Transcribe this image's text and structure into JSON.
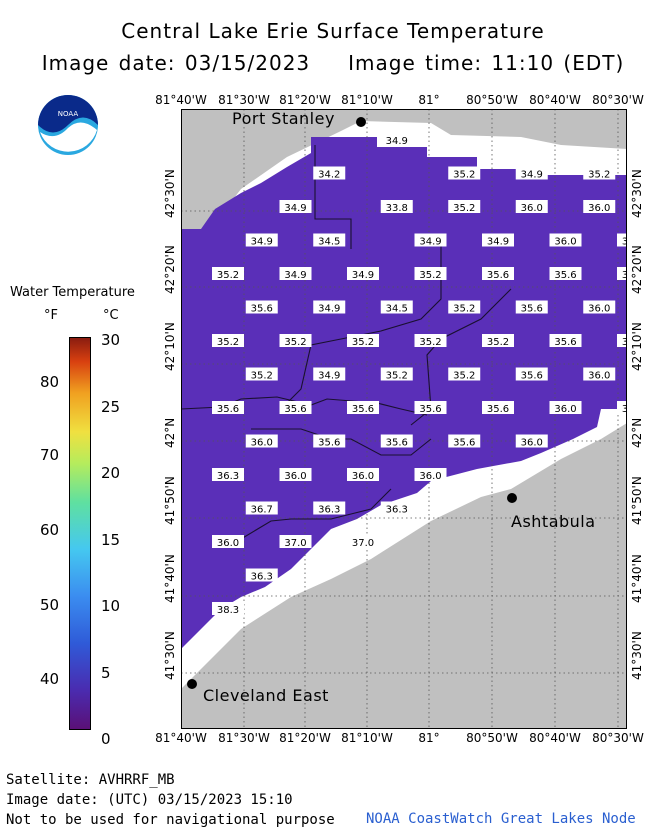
{
  "header": {
    "title": "Central Lake Erie Surface Temperature",
    "image_date": "Image date: 03/15/2023",
    "image_time": "Image time: 11:10 (EDT)"
  },
  "logo": {
    "text": "NOAA",
    "icon": "noaa-logo-icon"
  },
  "legend": {
    "title": "Water Temperature",
    "unit_f": "°F",
    "unit_c": "°C",
    "ticks_f": [
      "80",
      "70",
      "60",
      "50",
      "40"
    ],
    "ticks_c": [
      "30",
      "25",
      "20",
      "15",
      "10",
      "5",
      "0"
    ]
  },
  "longitude_labels": [
    "81°40'W",
    "81°30'W",
    "81°20'W",
    "81°10'W",
    "81°",
    "80°50'W",
    "80°40'W",
    "80°30'W"
  ],
  "latitude_labels": [
    "42°30'N",
    "42°20'N",
    "42°10'N",
    "42°N",
    "41°50'N",
    "41°40'N",
    "41°30'N"
  ],
  "cities": {
    "port_stanley": "Port Stanley",
    "ashtabula": "Ashtabula",
    "cleveland_east": "Cleveland East"
  },
  "temperature_labels": [
    {
      "row": 0,
      "col": 2,
      "v": "34.9"
    },
    {
      "row": 1,
      "col": 1,
      "v": "34.2"
    },
    {
      "row": 1,
      "col": 3,
      "v": "35.2"
    },
    {
      "row": 1,
      "col": 4,
      "v": "34.9"
    },
    {
      "row": 1,
      "col": 5,
      "v": "35.2"
    },
    {
      "row": 1,
      "col": 6,
      "v": "35.6"
    },
    {
      "row": 2,
      "col": 0.5,
      "v": "34.9"
    },
    {
      "row": 2,
      "col": 2,
      "v": "33.8"
    },
    {
      "row": 2,
      "col": 3,
      "v": "35.2"
    },
    {
      "row": 2,
      "col": 4,
      "v": "36.0"
    },
    {
      "row": 2,
      "col": 5,
      "v": "36.0"
    },
    {
      "row": 2,
      "col": 6,
      "v": "35.6"
    },
    {
      "row": 3,
      "col": 0,
      "v": "34.9"
    },
    {
      "row": 3,
      "col": 1,
      "v": "34.5"
    },
    {
      "row": 3,
      "col": 2.5,
      "v": "34.9"
    },
    {
      "row": 3,
      "col": 3.5,
      "v": "34.9"
    },
    {
      "row": 3,
      "col": 4.5,
      "v": "36.0"
    },
    {
      "row": 3,
      "col": 5.5,
      "v": "35.6"
    },
    {
      "row": 4,
      "col": -0.5,
      "v": "35.2"
    },
    {
      "row": 4,
      "col": 0.5,
      "v": "34.9"
    },
    {
      "row": 4,
      "col": 1.5,
      "v": "34.9"
    },
    {
      "row": 4,
      "col": 2.5,
      "v": "35.2"
    },
    {
      "row": 4,
      "col": 3.5,
      "v": "35.6"
    },
    {
      "row": 4,
      "col": 4.5,
      "v": "35.6"
    },
    {
      "row": 4,
      "col": 5.5,
      "v": "35.6"
    },
    {
      "row": 5,
      "col": 0,
      "v": "35.6"
    },
    {
      "row": 5,
      "col": 1,
      "v": "34.9"
    },
    {
      "row": 5,
      "col": 2,
      "v": "34.5"
    },
    {
      "row": 5,
      "col": 3,
      "v": "35.2"
    },
    {
      "row": 5,
      "col": 4,
      "v": "35.6"
    },
    {
      "row": 5,
      "col": 5,
      "v": "36.0"
    },
    {
      "row": 6,
      "col": -0.5,
      "v": "35.2"
    },
    {
      "row": 6,
      "col": 0.5,
      "v": "35.2"
    },
    {
      "row": 6,
      "col": 1.5,
      "v": "35.2"
    },
    {
      "row": 6,
      "col": 2.5,
      "v": "35.2"
    },
    {
      "row": 6,
      "col": 3.5,
      "v": "35.2"
    },
    {
      "row": 6,
      "col": 4.5,
      "v": "35.6"
    },
    {
      "row": 6,
      "col": 5.5,
      "v": "36.0"
    },
    {
      "row": 7,
      "col": 0,
      "v": "35.2"
    },
    {
      "row": 7,
      "col": 1,
      "v": "34.9"
    },
    {
      "row": 7,
      "col": 2,
      "v": "35.2"
    },
    {
      "row": 7,
      "col": 3,
      "v": "35.2"
    },
    {
      "row": 7,
      "col": 4,
      "v": "35.6"
    },
    {
      "row": 7,
      "col": 5,
      "v": "36.0"
    },
    {
      "row": 8,
      "col": -0.5,
      "v": "35.6"
    },
    {
      "row": 8,
      "col": 0.5,
      "v": "35.6"
    },
    {
      "row": 8,
      "col": 1.5,
      "v": "35.6"
    },
    {
      "row": 8,
      "col": 2.5,
      "v": "35.6"
    },
    {
      "row": 8,
      "col": 3.5,
      "v": "35.6"
    },
    {
      "row": 8,
      "col": 4.5,
      "v": "36.0"
    },
    {
      "row": 8,
      "col": 5.5,
      "v": "36.0"
    },
    {
      "row": 9,
      "col": 0,
      "v": "36.0"
    },
    {
      "row": 9,
      "col": 1,
      "v": "35.6"
    },
    {
      "row": 9,
      "col": 2,
      "v": "35.6"
    },
    {
      "row": 9,
      "col": 3,
      "v": "35.6"
    },
    {
      "row": 9,
      "col": 4,
      "v": "36.0"
    },
    {
      "row": 10,
      "col": -0.5,
      "v": "36.3"
    },
    {
      "row": 10,
      "col": 0.5,
      "v": "36.0"
    },
    {
      "row": 10,
      "col": 1.5,
      "v": "36.0"
    },
    {
      "row": 10,
      "col": 2.5,
      "v": "36.0"
    },
    {
      "row": 11,
      "col": 0,
      "v": "36.7"
    },
    {
      "row": 11,
      "col": 1,
      "v": "36.3"
    },
    {
      "row": 11,
      "col": 2,
      "v": "36.3"
    },
    {
      "row": 12,
      "col": -0.5,
      "v": "36.0"
    },
    {
      "row": 12,
      "col": 0.5,
      "v": "37.0"
    },
    {
      "row": 12,
      "col": 1.5,
      "v": "37.0"
    },
    {
      "row": 13,
      "col": 0,
      "v": "36.3"
    },
    {
      "row": 14,
      "col": -0.5,
      "v": "38.3"
    }
  ],
  "footer": {
    "satellite": "Satellite: AVHRRF_MB",
    "utc_date": "Image date: (UTC) 03/15/2023  15:10",
    "disclaimer": "Not to be used for navigational purpose",
    "credit": "NOAA CoastWatch Great Lakes Node"
  },
  "colors": {
    "land": "#c0c0c0",
    "no_data": "#ffffff",
    "water_temp": "#5a2fb8"
  }
}
